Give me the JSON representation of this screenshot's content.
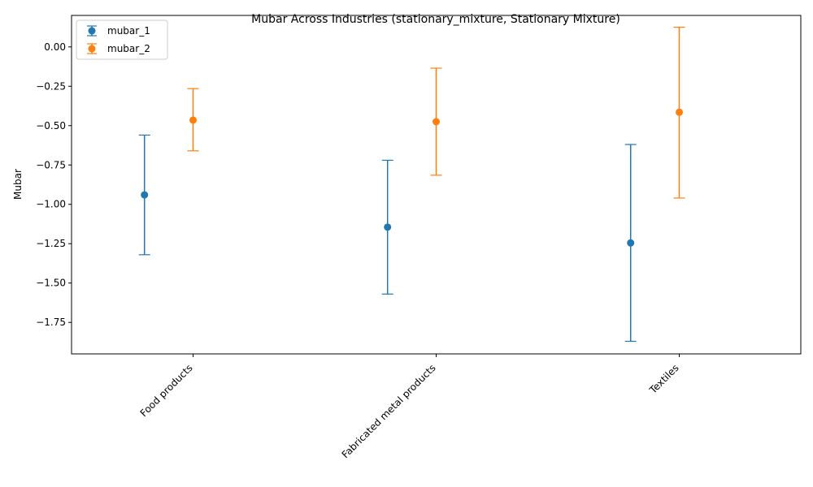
{
  "chart_data": {
    "type": "scatter",
    "title": "Mubar Across Industries (stationary_mixture, Stationary Mixture)",
    "xlabel": "",
    "ylabel": "Mubar",
    "categories": [
      "Food products",
      "Fabricated metal products",
      "Textiles"
    ],
    "ylim": [
      -1.95,
      0.2
    ],
    "yticks": [
      -1.75,
      -1.5,
      -1.25,
      -1.0,
      -0.75,
      -0.5,
      -0.25,
      0.0
    ],
    "ytick_labels": [
      "−1.75",
      "−1.50",
      "−1.25",
      "−1.00",
      "−0.75",
      "−0.50",
      "−0.25",
      "0.00"
    ],
    "legend_position": "top-left",
    "grid": false,
    "series": [
      {
        "name": "mubar_1",
        "color": "#1f77b4",
        "offset": -0.2,
        "values": [
          -0.94,
          -1.145,
          -1.245
        ],
        "lower": [
          -1.32,
          -1.57,
          -1.87
        ],
        "upper": [
          -0.56,
          -0.72,
          -0.62
        ]
      },
      {
        "name": "mubar_2",
        "color": "#ff7f0e",
        "offset": 0.0,
        "values": [
          -0.465,
          -0.475,
          -0.415
        ],
        "lower": [
          -0.66,
          -0.815,
          -0.96
        ],
        "upper": [
          -0.265,
          -0.135,
          0.125
        ]
      }
    ]
  }
}
